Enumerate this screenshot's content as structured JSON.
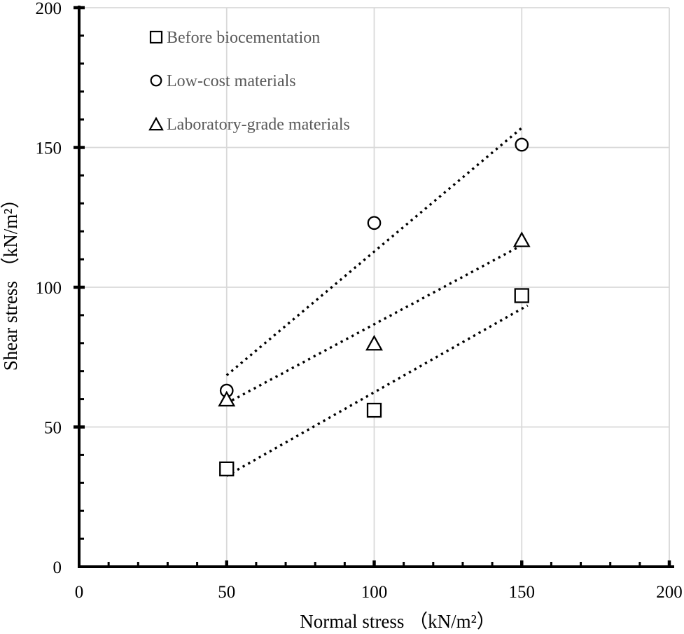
{
  "figure": {
    "background_color": "#ffffff",
    "axis_color": "#000000",
    "grid_color": "#d9d9d9",
    "tick_label_color": "#000000",
    "legend_text_color": "#595959"
  },
  "chart_data": {
    "type": "scatter",
    "title": "",
    "xlabel": "Normal stress （kN/m²）",
    "ylabel": "Shear stress （kN/m²）",
    "xlim": [
      0,
      200
    ],
    "ylim": [
      0,
      200
    ],
    "x_major_ticks": [
      0,
      50,
      100,
      150,
      200
    ],
    "y_major_ticks": [
      0,
      50,
      100,
      150,
      200
    ],
    "minor_tick_step": 10,
    "grid": "major gridlines on, light gray, both axes",
    "legend_position": "top-left inside plot area",
    "series": [
      {
        "name": "Before biocementation",
        "marker": "square",
        "color": "#000000",
        "points": [
          [
            50,
            35
          ],
          [
            100,
            56
          ],
          [
            150,
            97
          ]
        ],
        "trendline": {
          "style": "dotted",
          "from": [
            50,
            32.5
          ],
          "to": [
            152,
            93.5
          ]
        }
      },
      {
        "name": "Low-cost materials",
        "marker": "circle",
        "color": "#000000",
        "points": [
          [
            50,
            63
          ],
          [
            100,
            123
          ],
          [
            150,
            151
          ]
        ],
        "trendline": {
          "style": "dotted",
          "from": [
            50,
            68.5
          ],
          "to": [
            150,
            157
          ]
        }
      },
      {
        "name": "Laboratory-grade materials",
        "marker": "triangle",
        "color": "#000000",
        "points": [
          [
            50,
            60
          ],
          [
            100,
            80
          ],
          [
            150,
            117
          ]
        ],
        "trendline": {
          "style": "dotted",
          "from": [
            50,
            58.5
          ],
          "to": [
            150,
            115
          ]
        }
      }
    ]
  }
}
